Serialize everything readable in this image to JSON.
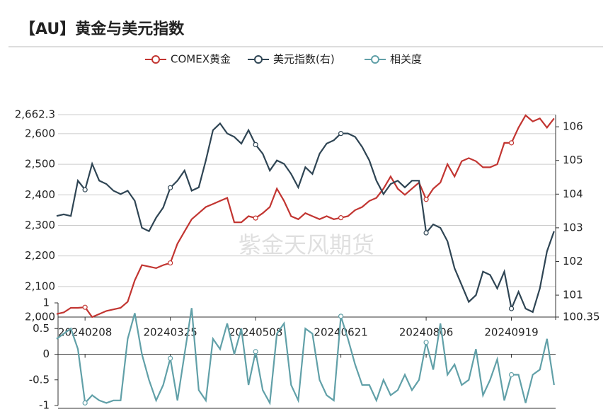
{
  "chart_data": [
    {
      "type": "line",
      "title": "【AU】黄金与美元指数",
      "watermark": "紫金天风期货",
      "categories": [
        null,
        null,
        null,
        null,
        "20240208",
        null,
        null,
        null,
        null,
        null,
        null,
        null,
        null,
        null,
        null,
        null,
        "20240325",
        null,
        null,
        null,
        null,
        null,
        null,
        null,
        null,
        null,
        null,
        null,
        "20240508",
        null,
        null,
        null,
        null,
        null,
        null,
        null,
        null,
        null,
        null,
        null,
        "20240621",
        null,
        null,
        null,
        null,
        null,
        null,
        null,
        null,
        null,
        null,
        null,
        "20240806",
        null,
        null,
        null,
        null,
        null,
        null,
        null,
        null,
        null,
        null,
        null,
        "20240919",
        null,
        null,
        null,
        null,
        null,
        null
      ],
      "series": [
        {
          "name": "COMEX黄金",
          "color": "#c23531",
          "axis": "y",
          "values": [
            2010,
            2015,
            2030,
            2030,
            2032,
            2000,
            2010,
            2020,
            2025,
            2030,
            2050,
            2120,
            2170,
            2165,
            2160,
            2170,
            2177,
            2240,
            2280,
            2320,
            2340,
            2360,
            2370,
            2380,
            2390,
            2310,
            2310,
            2330,
            2324,
            2340,
            2360,
            2420,
            2380,
            2330,
            2320,
            2340,
            2330,
            2320,
            2330,
            2320,
            2325,
            2330,
            2350,
            2360,
            2380,
            2390,
            2420,
            2460,
            2420,
            2400,
            2420,
            2440,
            2385,
            2420,
            2440,
            2500,
            2460,
            2510,
            2520,
            2510,
            2490,
            2490,
            2500,
            2570,
            2570,
            2620,
            2660,
            2640,
            2650,
            2620,
            2650
          ]
        },
        {
          "name": "美元指数(右)",
          "color": "#2f4554",
          "axis": "y2",
          "values": [
            103.35,
            103.4,
            103.35,
            104.4,
            104.13,
            104.9,
            104.4,
            104.3,
            104.1,
            104.0,
            104.1,
            103.8,
            103.0,
            102.9,
            103.3,
            103.6,
            104.19,
            104.4,
            104.7,
            104.1,
            104.2,
            105.0,
            105.9,
            106.1,
            105.8,
            105.7,
            105.5,
            105.9,
            105.47,
            105.2,
            104.7,
            105.0,
            104.9,
            104.6,
            104.2,
            104.8,
            104.6,
            105.2,
            105.5,
            105.6,
            105.8,
            105.8,
            105.7,
            105.4,
            105.0,
            104.4,
            104.0,
            104.3,
            104.4,
            104.2,
            104.4,
            104.4,
            102.85,
            103.1,
            103.0,
            102.6,
            101.8,
            101.3,
            100.8,
            101.0,
            101.7,
            101.6,
            101.2,
            101.7,
            100.6,
            101.1,
            100.6,
            100.5,
            101.2,
            102.3,
            102.9
          ]
        }
      ],
      "ylim": [
        2000,
        2662.3
      ],
      "yticks": [
        {
          "value": 2000,
          "label": "2,000"
        },
        {
          "value": 2100,
          "label": "2,100"
        },
        {
          "value": 2200,
          "label": "2,200"
        },
        {
          "value": 2300,
          "label": "2,300"
        },
        {
          "value": 2400,
          "label": "2,400"
        },
        {
          "value": 2500,
          "label": "2,500"
        },
        {
          "value": 2600,
          "label": "2,600"
        },
        {
          "value": 2662.3,
          "label": "2,662.3"
        }
      ],
      "y2lim": [
        100.35,
        106.36
      ],
      "y2ticks": [
        100.35,
        101,
        102,
        103,
        104,
        105,
        106
      ],
      "grid": true
    },
    {
      "type": "line",
      "series": [
        {
          "name": "相关度",
          "color": "#61a0a8",
          "values": [
            0.3,
            0.4,
            0.5,
            0.1,
            -0.95,
            -0.8,
            -0.9,
            -0.95,
            -0.9,
            -0.9,
            0.3,
            0.8,
            0.0,
            -0.5,
            -0.9,
            -0.6,
            -0.08,
            -0.9,
            0.0,
            0.9,
            -0.7,
            -0.9,
            0.3,
            0.1,
            0.6,
            0.0,
            0.5,
            -0.6,
            0.05,
            -0.7,
            -0.95,
            0.4,
            0.6,
            -0.6,
            -0.9,
            0.5,
            0.4,
            -0.5,
            -0.8,
            -0.9,
            0.74,
            0.3,
            -0.2,
            -0.6,
            -0.6,
            -0.9,
            -0.5,
            -0.8,
            -0.7,
            -0.4,
            -0.7,
            -0.5,
            0.23,
            -0.3,
            0.6,
            -0.4,
            -0.2,
            -0.6,
            -0.5,
            0.1,
            -0.8,
            -0.5,
            -0.1,
            -0.9,
            -0.4,
            -0.4,
            -0.95,
            -0.4,
            -0.3,
            0.3,
            -0.6
          ]
        }
      ],
      "ylim": [
        -1,
        1
      ],
      "yticks": [
        -1,
        -0.5,
        0,
        0.5,
        1
      ]
    }
  ]
}
